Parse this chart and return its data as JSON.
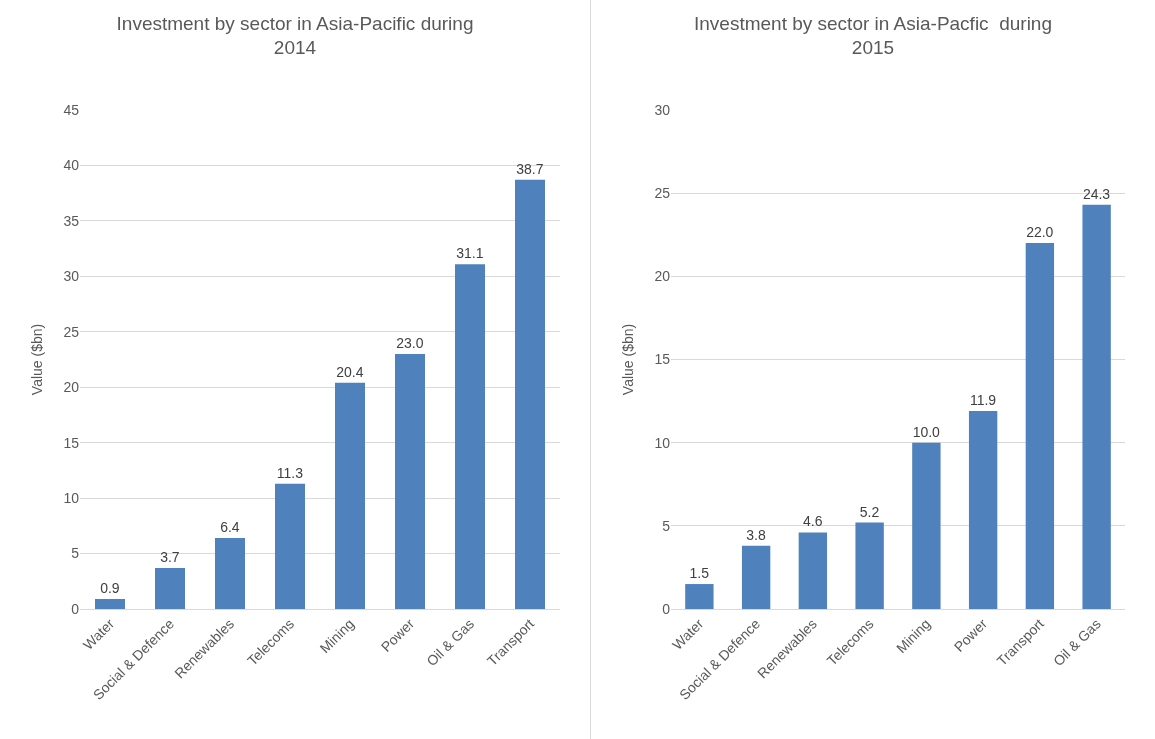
{
  "chart_data": [
    {
      "type": "bar",
      "title": "Investment by sector in Asia-Pacific during 2014",
      "ylabel": "Value ($bn)",
      "categories": [
        "Water",
        "Social & Defence",
        "Renewables",
        "Telecoms",
        "Mining",
        "Power",
        "Oil & Gas",
        "Transport"
      ],
      "values": [
        0.9,
        3.7,
        6.4,
        11.3,
        20.4,
        23.0,
        31.1,
        38.7
      ],
      "value_labels": [
        "0.9",
        "3.7",
        "6.4",
        "11.3",
        "20.4",
        "23.0",
        "31.1",
        "38.7"
      ],
      "color": "#4f81bd",
      "ylim": [
        0,
        45
      ],
      "yticks": [
        0,
        5,
        10,
        15,
        20,
        25,
        30,
        35,
        40,
        45
      ],
      "grid": "y"
    },
    {
      "type": "bar",
      "title": "Investment by sector in Asia-Pacfic  during 2015",
      "ylabel": "Value ($bn)",
      "categories": [
        "Water",
        "Social & Defence",
        "Renewables",
        "Telecoms",
        "Mining",
        "Power",
        "Transport",
        "Oil & Gas"
      ],
      "values": [
        1.5,
        3.8,
        4.6,
        5.2,
        10.0,
        11.9,
        22.0,
        24.3
      ],
      "value_labels": [
        "1.5",
        "3.8",
        "4.6",
        "5.2",
        "10.0",
        "11.9",
        "22.0",
        "24.3"
      ],
      "color": "#4f81bd",
      "ylim": [
        0,
        30
      ],
      "yticks": [
        0,
        5,
        10,
        15,
        20,
        25,
        30
      ],
      "grid": "y"
    }
  ]
}
